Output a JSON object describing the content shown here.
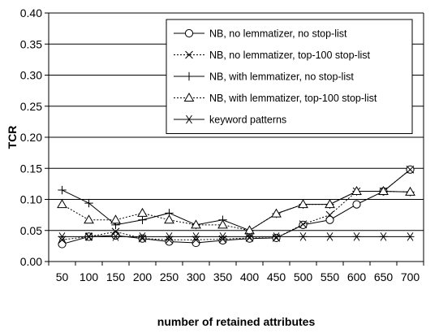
{
  "chart_data": {
    "type": "line",
    "title": "",
    "xlabel": "number of retained attributes",
    "ylabel": "TCR",
    "x": [
      50,
      100,
      150,
      200,
      250,
      300,
      350,
      400,
      450,
      500,
      550,
      600,
      650,
      700
    ],
    "xticks": [
      "50",
      "100",
      "150",
      "200",
      "250",
      "300",
      "350",
      "400",
      "450",
      "500",
      "550",
      "600",
      "650",
      "700"
    ],
    "ylim": [
      0,
      0.4
    ],
    "yticks": [
      "0.00",
      "0.05",
      "0.10",
      "0.15",
      "0.20",
      "0.25",
      "0.30",
      "0.35",
      "0.40"
    ],
    "grid": "horizontal",
    "legend_position": "top-right",
    "series": [
      {
        "name": "NB, no lemmatizer, no stop-list",
        "marker": "circle",
        "dash": "solid",
        "values": [
          0.028,
          0.04,
          0.042,
          0.037,
          0.032,
          0.03,
          0.034,
          0.037,
          0.038,
          0.059,
          0.067,
          0.092,
          0.113,
          0.148
        ]
      },
      {
        "name": "NB, no lemmatizer, top-100 stop-list",
        "marker": "x",
        "dash": "dotted",
        "values": [
          0.035,
          0.04,
          0.048,
          0.037,
          0.035,
          0.035,
          0.036,
          0.038,
          0.038,
          0.06,
          0.075,
          0.113,
          0.113,
          0.148
        ]
      },
      {
        "name": "NB, with lemmatizer, no stop-list",
        "marker": "plus",
        "dash": "solid",
        "values": [
          0.115,
          0.094,
          0.059,
          0.067,
          0.078,
          0.059,
          0.067,
          0.05,
          0.077,
          0.092,
          0.092,
          0.113,
          0.113,
          0.112
        ]
      },
      {
        "name": "NB, with lemmatizer, top-100 stop-list",
        "marker": "triangle",
        "dash": "dotted",
        "values": [
          0.092,
          0.067,
          0.067,
          0.078,
          0.067,
          0.059,
          0.059,
          0.05,
          0.077,
          0.092,
          0.092,
          0.113,
          0.113,
          0.112
        ]
      },
      {
        "name": "keyword patterns",
        "marker": "asterisk",
        "dash": "solid",
        "values": [
          0.04,
          0.04,
          0.04,
          0.04,
          0.04,
          0.04,
          0.04,
          0.04,
          0.04,
          0.04,
          0.04,
          0.04,
          0.04,
          0.04
        ]
      }
    ]
  }
}
